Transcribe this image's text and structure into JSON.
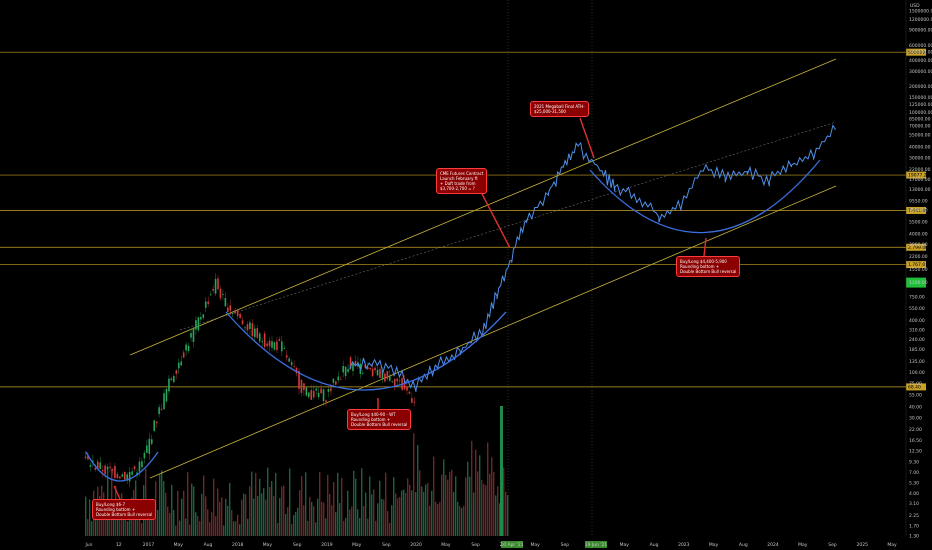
{
  "chart_data": {
    "type": "line",
    "title": "",
    "xlabel": "",
    "ylabel": "",
    "y_scale": "log",
    "currency": "USD",
    "y_unit_label": "USD",
    "grid": false,
    "y_ticks": [
      "1800000.00",
      "1500000.00",
      "1200000.00",
      "900000.00",
      "600000.00",
      "500000.00",
      "400000.00",
      "300000.00",
      "200000.00",
      "150000.00",
      "125000.00",
      "100000.00",
      "85000.00",
      "70000.00",
      "55000.00",
      "40000.00",
      "30000.00",
      "22000.00",
      "17000.00",
      "13000.00",
      "9550.00",
      "7500.00",
      "5500.00",
      "4000.00",
      "3000.00",
      "2200.00",
      "1550.00",
      "1100.00",
      "750.00",
      "550.00",
      "400.00",
      "310.00",
      "240.00",
      "185.00",
      "135.00",
      "100.00",
      "75.00",
      "55.00",
      "40.00",
      "30.00",
      "22.00",
      "16.50",
      "12.50",
      "9.30",
      "7.00",
      "5.30",
      "4.00",
      "3.10",
      "2.25",
      "1.70",
      "1.30"
    ],
    "x_ticks": [
      "Jun",
      "12",
      "2017",
      "May",
      "Aug",
      "2018",
      "May",
      "Sep",
      "2019",
      "May",
      "Sep",
      "2020",
      "May",
      "Sep",
      "2021",
      "May",
      "Sep",
      "2022",
      "May",
      "Aug",
      "2023",
      "May",
      "Aug",
      "2024",
      "May",
      "Sep",
      "2025",
      "May"
    ],
    "x_highlight_labels": [
      {
        "label": "10 Apr '21",
        "color": "#3a8c2e"
      },
      {
        "label": "19 Jun '21",
        "color": "#3a8c2e"
      }
    ],
    "price_levels": [
      {
        "label": "500000.00",
        "value": 500000,
        "color": "#c9a227"
      },
      {
        "label": "19077.20",
        "value": 19077.2,
        "color": "#c9a227"
      },
      {
        "label": "7.441.98",
        "value": 7441.98,
        "color": "#c9a227"
      },
      {
        "label": "2.799.00",
        "value": 2799,
        "color": "#c9a227"
      },
      {
        "label": "1.767.0",
        "value": 1767,
        "color": "#c9a227"
      },
      {
        "label": "68.40",
        "value": 68.4,
        "color": "#c9a227"
      }
    ],
    "current_price_badge": {
      "color": "#1fbf3a"
    },
    "annotations": [
      {
        "text": "2021 Megaball Final ATH-\n$25,000-31,500"
      },
      {
        "text": "CME Futures Contract\nLaunch February ft\n+ Daft trade from\n$3,700-2,700 = ?"
      },
      {
        "text": "Buy/Long $4,400-5,900\nRounding bottom +\nDouble Bottom Bull reversal"
      },
      {
        "text": "Buy/Long $40-90 - WT\nRounding bottom +\nDouble Bottom Bull reversal"
      },
      {
        "text": "Buy/Long $6-7\nRounding bottom +\nDouble Bottom Bull reversal"
      }
    ],
    "series": [
      {
        "role": "candles",
        "color_up": "#26a65b",
        "color_down": "#d43b3b",
        "x": [
          "2016-06",
          "2016-09",
          "2016-12",
          "2017-02",
          "2017-04",
          "2017-06",
          "2017-09",
          "2017-12",
          "2018-01",
          "2018-03",
          "2018-06",
          "2018-09",
          "2018-12",
          "2019-03",
          "2019-06",
          "2019-09",
          "2019-12",
          "2020-03"
        ],
        "values": [
          10.0,
          7.5,
          6.5,
          9.0,
          30,
          90,
          300,
          1100,
          700,
          450,
          250,
          200,
          60,
          55,
          130,
          100,
          90,
          50
        ]
      },
      {
        "role": "price",
        "color": "#4f8fe8",
        "x": [
          "2019-06",
          "2019-09",
          "2019-12",
          "2020-03",
          "2020-06",
          "2020-09",
          "2020-12",
          "2021-02",
          "2021-04",
          "2021-06",
          "2021-09",
          "2021-11",
          "2022-01",
          "2022-04",
          "2022-06",
          "2022-09",
          "2022-12",
          "2023-03",
          "2023-06",
          "2023-09",
          "2023-12",
          "2024-03",
          "2024-06",
          "2024-09",
          "2024-12"
        ],
        "values": [
          120,
          130,
          110,
          70,
          130,
          180,
          300,
          800,
          2200,
          6000,
          12000,
          25000,
          42000,
          22000,
          14000,
          11000,
          6500,
          8500,
          24000,
          19000,
          21000,
          17000,
          25000,
          33000,
          70000
        ]
      }
    ]
  }
}
